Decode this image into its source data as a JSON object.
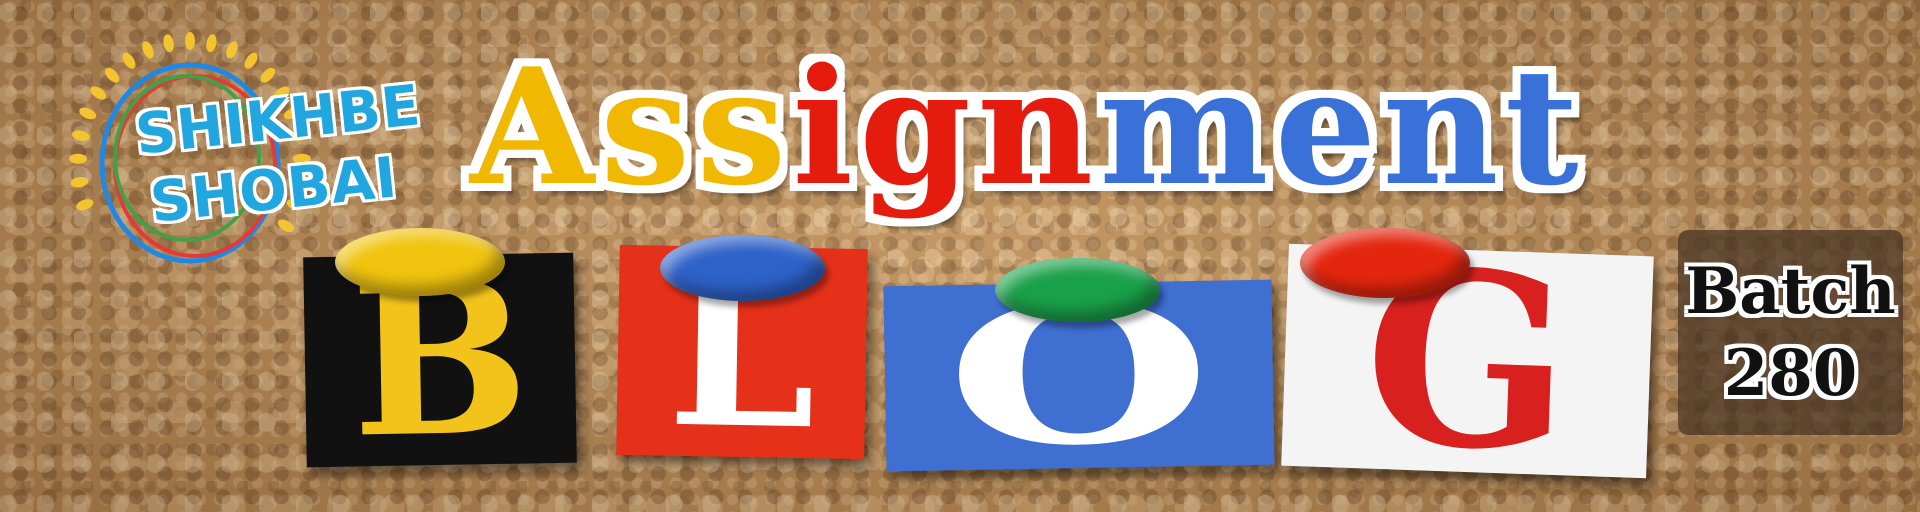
{
  "logo": {
    "line1": "SHIKHBE",
    "line2": "SHOBAI",
    "icon": "sun-circle-logo-icon",
    "colors": {
      "text": "#22a6e0",
      "rays": "#f4c430",
      "rings": [
        "#1e88e5",
        "#e53935",
        "#43a047"
      ]
    }
  },
  "title": {
    "part1": "Ass",
    "part2": "ign",
    "part3": "ment",
    "colors": {
      "part1": "#f0b800",
      "part2": "#e51b0e",
      "part3": "#3a71d8"
    }
  },
  "blog": {
    "letters": [
      "B",
      "L",
      "O",
      "G"
    ],
    "card_colors": [
      "#111111",
      "#e5311a",
      "#3f6fd1",
      "#f4f4f4"
    ],
    "pin_colors": [
      "#f1c40f",
      "#2e62c9",
      "#1aa04a",
      "#e4260f"
    ]
  },
  "batch": {
    "label": "Batch",
    "number": "280"
  }
}
